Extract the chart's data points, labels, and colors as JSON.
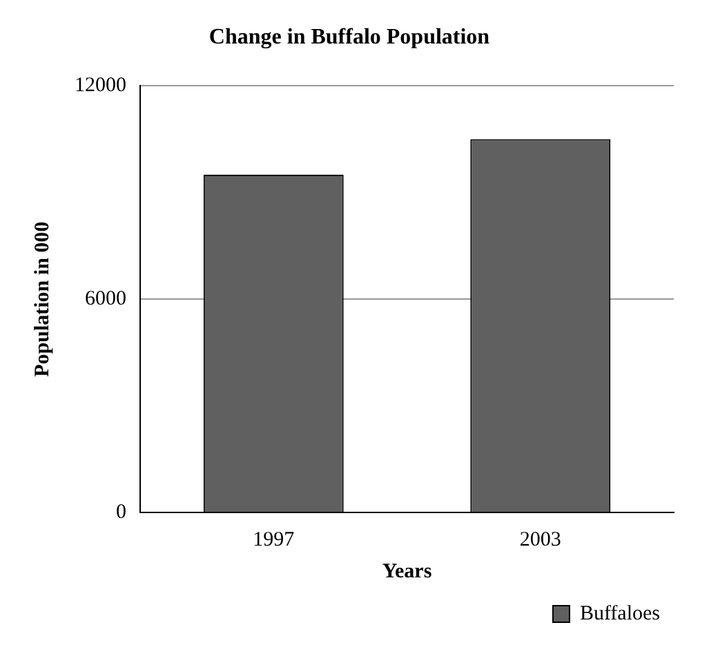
{
  "chart_data": {
    "type": "bar",
    "title": "Change in Buffalo Population",
    "xlabel": "Years",
    "ylabel": "Population in 000",
    "categories": [
      "1997",
      "2003"
    ],
    "series": [
      {
        "name": "Buffaloes",
        "color": "#606060",
        "values": [
          9500,
          10500
        ]
      }
    ],
    "ylim": [
      0,
      12000
    ],
    "yticks": [
      0,
      6000,
      12000
    ],
    "grid": "y",
    "legend": "bottom right"
  }
}
